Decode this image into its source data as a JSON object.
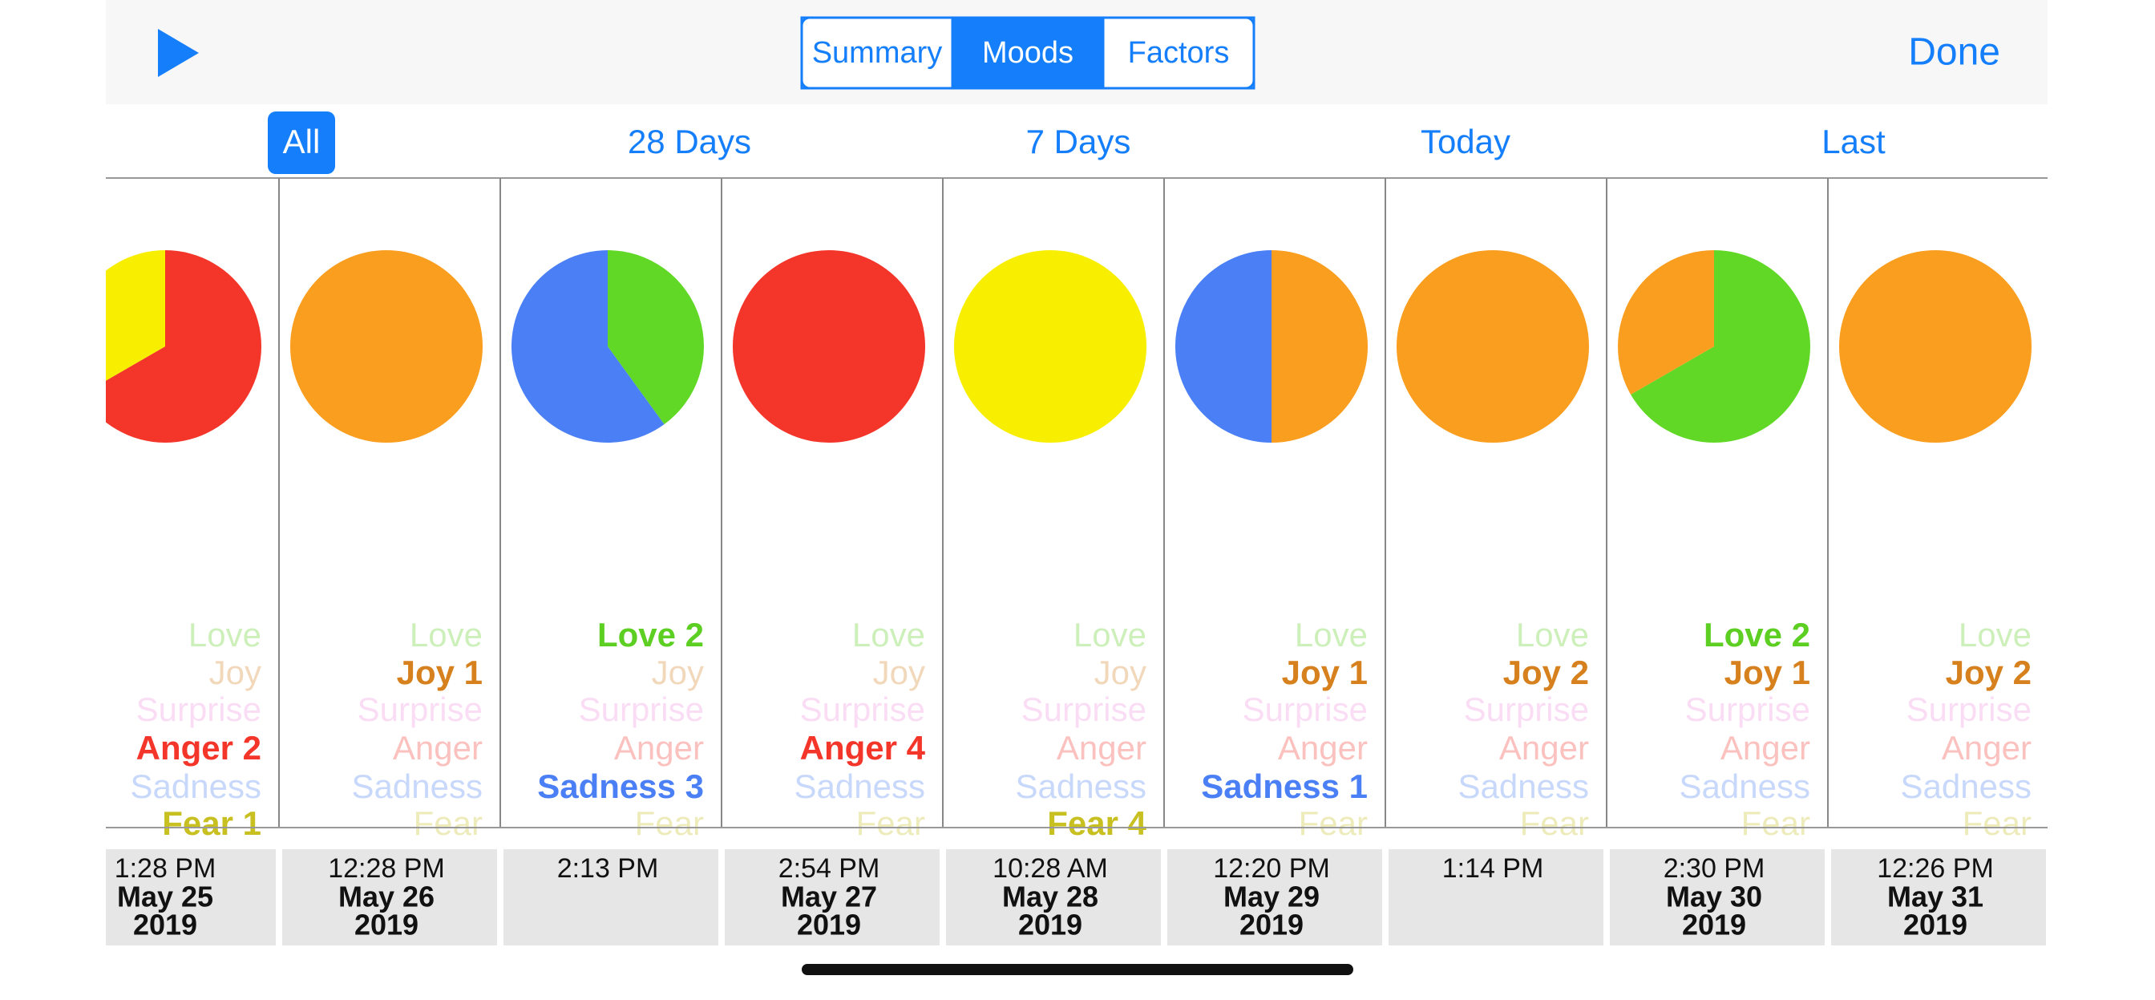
{
  "header": {
    "segments": [
      "Summary",
      "Moods",
      "Factors"
    ],
    "selected_segment": 1,
    "done": "Done"
  },
  "filters": {
    "items": [
      "All",
      "28 Days",
      "7 Days",
      "Today",
      "Last"
    ],
    "selected": 0
  },
  "mood_colors": [
    "#62d826",
    "#fa9e1f",
    "#f5a6e6",
    "#f4352a",
    "#4a7ff5",
    "#f8ee00"
  ],
  "mood_text_colors": [
    "#5ccf22",
    "#d6801e",
    "#ef8fe0",
    "#f4352a",
    "#4a7ff5",
    "#c8c021"
  ],
  "entries": [
    {
      "time": "1:28 PM",
      "date": "May 25",
      "year": "2019",
      "labels": [
        "Love",
        "Joy",
        "Surprise",
        "Anger 2",
        "Sadness",
        "Fear 1"
      ],
      "counts": [
        0,
        0,
        0,
        2,
        0,
        1
      ]
    },
    {
      "time": "12:28 PM",
      "date": "May 26",
      "year": "2019",
      "labels": [
        "Love",
        "Joy 1",
        "Surprise",
        "Anger",
        "Sadness",
        "Fear"
      ],
      "counts": [
        0,
        1,
        0,
        0,
        0,
        0
      ]
    },
    {
      "time": "2:13 PM",
      "date": null,
      "year": null,
      "labels": [
        "Love 2",
        "Joy",
        "Surprise",
        "Anger",
        "Sadness 3",
        "Fear"
      ],
      "counts": [
        2,
        0,
        0,
        0,
        3,
        0
      ]
    },
    {
      "time": "2:54 PM",
      "date": "May 27",
      "year": "2019",
      "labels": [
        "Love",
        "Joy",
        "Surprise",
        "Anger 4",
        "Sadness",
        "Fear"
      ],
      "counts": [
        0,
        0,
        0,
        4,
        0,
        0
      ]
    },
    {
      "time": "10:28 AM",
      "date": "May 28",
      "year": "2019",
      "labels": [
        "Love",
        "Joy",
        "Surprise",
        "Anger",
        "Sadness",
        "Fear 4"
      ],
      "counts": [
        0,
        0,
        0,
        0,
        0,
        4
      ]
    },
    {
      "time": "12:20 PM",
      "date": "May 29",
      "year": "2019",
      "labels": [
        "Love",
        "Joy 1",
        "Surprise",
        "Anger",
        "Sadness 1",
        "Fear"
      ],
      "counts": [
        0,
        1,
        0,
        0,
        1,
        0
      ]
    },
    {
      "time": "1:14 PM",
      "date": null,
      "year": null,
      "labels": [
        "Love",
        "Joy 2",
        "Surprise",
        "Anger",
        "Sadness",
        "Fear"
      ],
      "counts": [
        0,
        2,
        0,
        0,
        0,
        0
      ]
    },
    {
      "time": "2:30 PM",
      "date": "May 30",
      "year": "2019",
      "labels": [
        "Love 2",
        "Joy 1",
        "Surprise",
        "Anger",
        "Sadness",
        "Fear"
      ],
      "counts": [
        2,
        1,
        0,
        0,
        0,
        0
      ]
    },
    {
      "time": "12:26 PM",
      "date": "May 31",
      "year": "2019",
      "labels": [
        "Love",
        "Joy 2",
        "Surprise",
        "Anger",
        "Sadness",
        "Fear"
      ],
      "counts": [
        0,
        2,
        0,
        0,
        0,
        0
      ]
    }
  ]
}
